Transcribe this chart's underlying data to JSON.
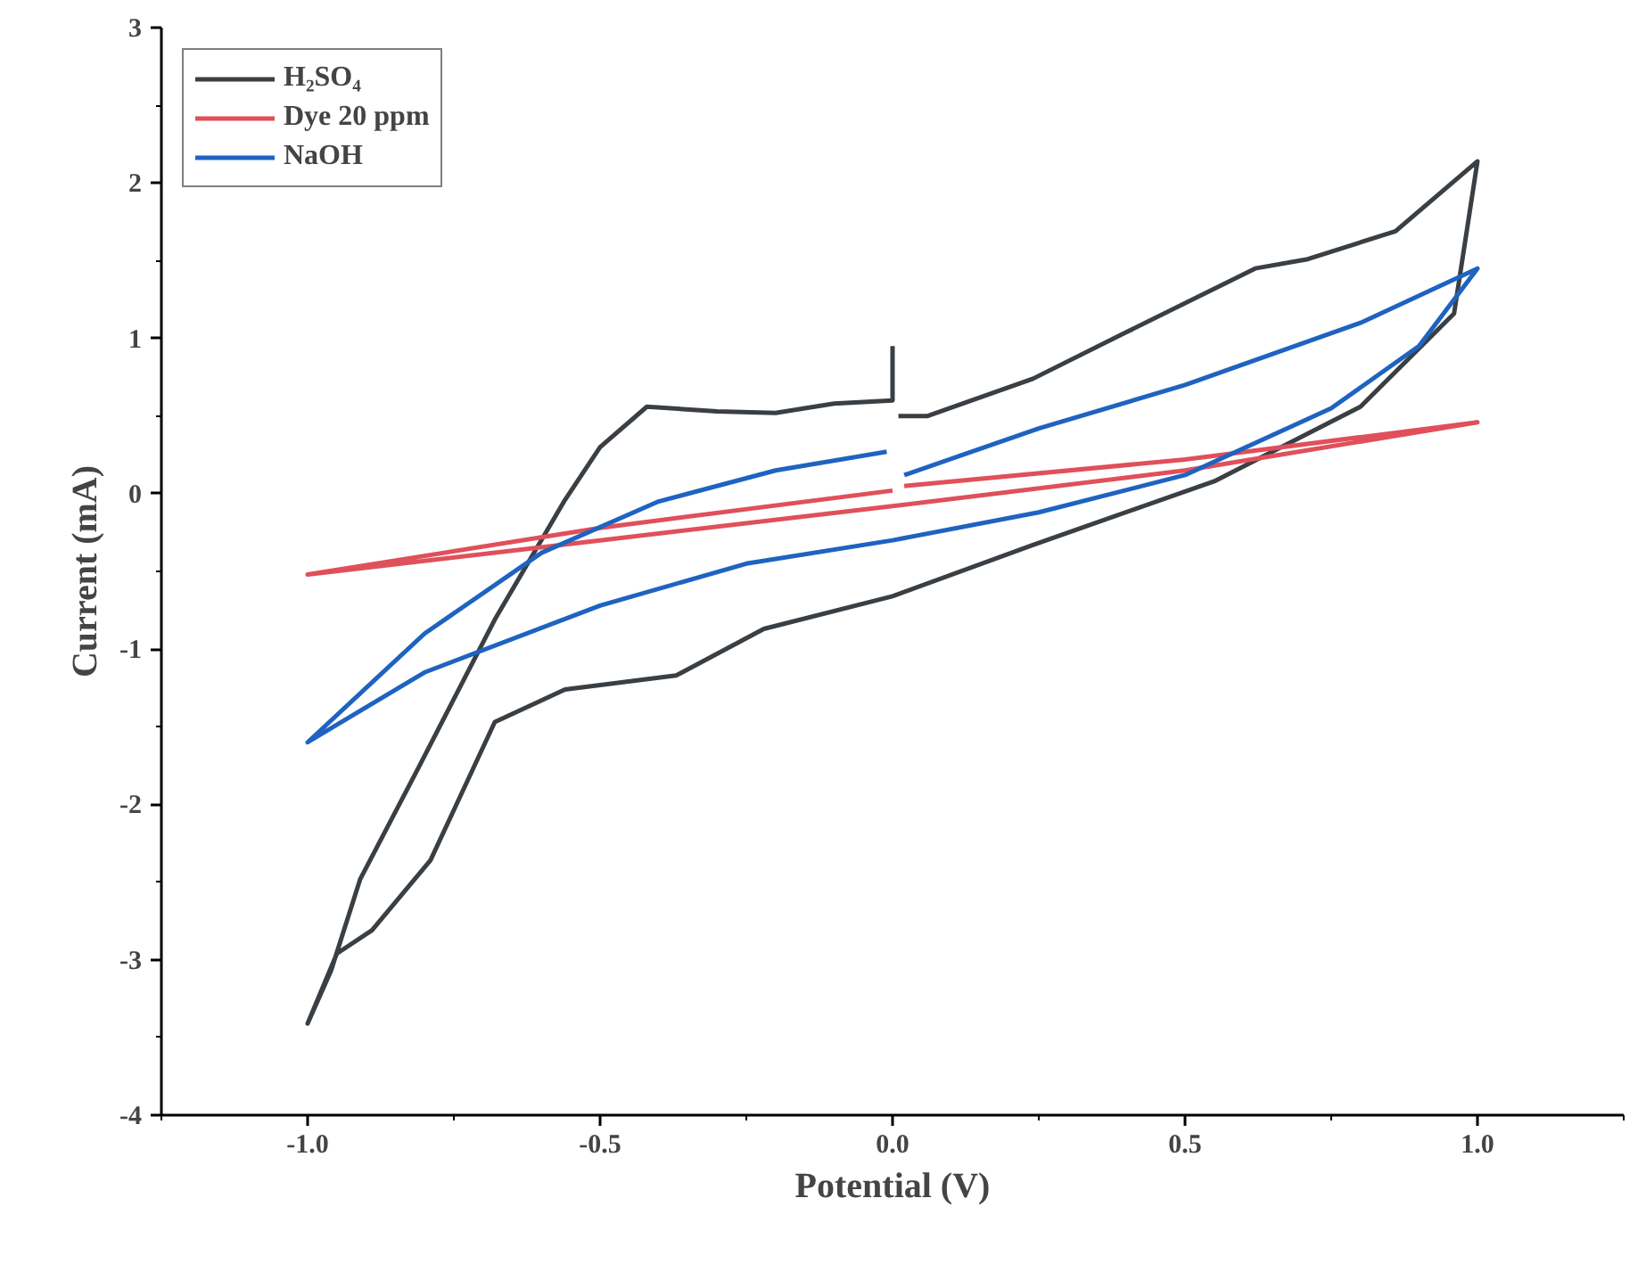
{
  "chart_data": {
    "type": "line",
    "xlabel": "Potential (V)",
    "ylabel": "Current (mA)",
    "xlim": [
      -1.25,
      1.25
    ],
    "ylim": [
      -4,
      3
    ],
    "xticks": [
      {
        "value": -1,
        "label": "-1.0"
      },
      {
        "value": -0.5,
        "label": "-0.5"
      },
      {
        "value": 0,
        "label": "0.0"
      },
      {
        "value": 0.5,
        "label": "0.5"
      },
      {
        "value": 1,
        "label": "1.0"
      }
    ],
    "yticks": [
      -4,
      -3,
      -2,
      -1,
      0,
      1,
      2,
      3
    ],
    "grid": false,
    "legend": "top left",
    "marker": "none",
    "line_style": "solid",
    "series": [
      {
        "name": "H₂SO₄",
        "color": "#3a3f44",
        "x": [
          0,
          0,
          -0.1,
          -0.2,
          -0.3,
          -0.42,
          -0.5,
          -0.56,
          -0.68,
          -0.81,
          -0.91,
          -0.96,
          -1.0,
          -0.95,
          -0.89,
          -0.79,
          -0.68,
          -0.56,
          -0.37,
          -0.22,
          0,
          0.24,
          0.55,
          0.8,
          0.96,
          1.0,
          0.86,
          0.71,
          0.62,
          0.4,
          0.24,
          0.06,
          0.01
        ],
        "values": [
          0.95,
          0.6,
          0.58,
          0.52,
          0.53,
          0.56,
          0.3,
          -0.04,
          -0.81,
          -1.76,
          -2.48,
          -3.07,
          -3.41,
          -2.96,
          -2.81,
          -2.36,
          -1.47,
          -1.26,
          -1.17,
          -0.87,
          -0.66,
          -0.33,
          0.08,
          0.56,
          1.16,
          2.14,
          1.69,
          1.51,
          1.45,
          1.04,
          0.74,
          0.5,
          0.5
        ]
      },
      {
        "name": "Dye 20 ppm",
        "color": "#e0505a",
        "x": [
          0,
          -0.5,
          -1,
          -0.5,
          0,
          0.5,
          1,
          0.5,
          0.02
        ],
        "values": [
          0.02,
          -0.22,
          -0.52,
          -0.3,
          -0.08,
          0.15,
          0.46,
          0.22,
          0.05
        ]
      },
      {
        "name": "NaOH",
        "color": "#1f63c0",
        "x": [
          -0.01,
          -0.2,
          -0.4,
          -0.6,
          -0.8,
          -1,
          -0.8,
          -0.5,
          -0.25,
          0,
          0.25,
          0.5,
          0.75,
          0.9,
          1,
          0.8,
          0.5,
          0.25,
          0.02
        ],
        "values": [
          0.27,
          0.15,
          -0.05,
          -0.38,
          -0.9,
          -1.6,
          -1.15,
          -0.72,
          -0.45,
          -0.3,
          -0.12,
          0.12,
          0.55,
          0.95,
          1.45,
          1.1,
          0.7,
          0.42,
          0.12
        ]
      }
    ]
  }
}
